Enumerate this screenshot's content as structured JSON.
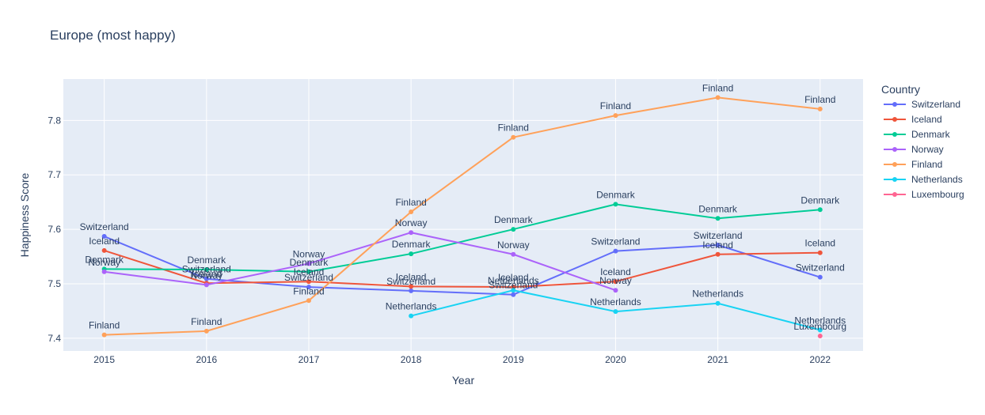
{
  "chart_data": {
    "type": "line",
    "title": "Europe (most happy)",
    "xlabel": "Year",
    "ylabel": "Happiness Score",
    "legend_title": "Country",
    "legend_position": "right",
    "grid": true,
    "x_ticks": [
      2015,
      2016,
      2017,
      2018,
      2019,
      2020,
      2021,
      2022
    ],
    "y_ticks": [
      7.4,
      7.5,
      7.6,
      7.7,
      7.8
    ],
    "xlim": [
      2014.6,
      2022.42
    ],
    "ylim": [
      7.3765,
      7.876
    ],
    "series": [
      {
        "name": "Switzerland",
        "color": "#636efa",
        "x": [
          2015,
          2016,
          2017,
          2018,
          2019,
          2020,
          2021,
          2022
        ],
        "y": [
          7.587,
          7.509,
          7.494,
          7.487,
          7.48,
          7.56,
          7.571,
          7.512
        ]
      },
      {
        "name": "Iceland",
        "color": "#EF553B",
        "x": [
          2015,
          2016,
          2017,
          2018,
          2019,
          2020,
          2021,
          2022
        ],
        "y": [
          7.561,
          7.501,
          7.504,
          7.495,
          7.494,
          7.504,
          7.554,
          7.557
        ]
      },
      {
        "name": "Denmark",
        "color": "#00cc96",
        "x": [
          2015,
          2016,
          2017,
          2018,
          2019,
          2020,
          2021,
          2022
        ],
        "y": [
          7.527,
          7.526,
          7.522,
          7.555,
          7.6,
          7.646,
          7.62,
          7.636
        ]
      },
      {
        "name": "Norway",
        "color": "#ab63fa",
        "x": [
          2015,
          2016,
          2017,
          2018,
          2019,
          2020
        ],
        "y": [
          7.522,
          7.498,
          7.537,
          7.594,
          7.554,
          7.488
        ]
      },
      {
        "name": "Finland",
        "color": "#FFA15A",
        "x": [
          2015,
          2016,
          2017,
          2018,
          2019,
          2020,
          2021,
          2022
        ],
        "y": [
          7.406,
          7.413,
          7.469,
          7.632,
          7.769,
          7.809,
          7.842,
          7.821
        ]
      },
      {
        "name": "Netherlands",
        "color": "#19d3f3",
        "x": [
          2018,
          2019,
          2020,
          2021,
          2022
        ],
        "y": [
          7.441,
          7.488,
          7.449,
          7.464,
          7.415
        ]
      },
      {
        "name": "Luxembourg",
        "color": "#FF6692",
        "x": [
          2022
        ],
        "y": [
          7.404
        ]
      }
    ]
  }
}
